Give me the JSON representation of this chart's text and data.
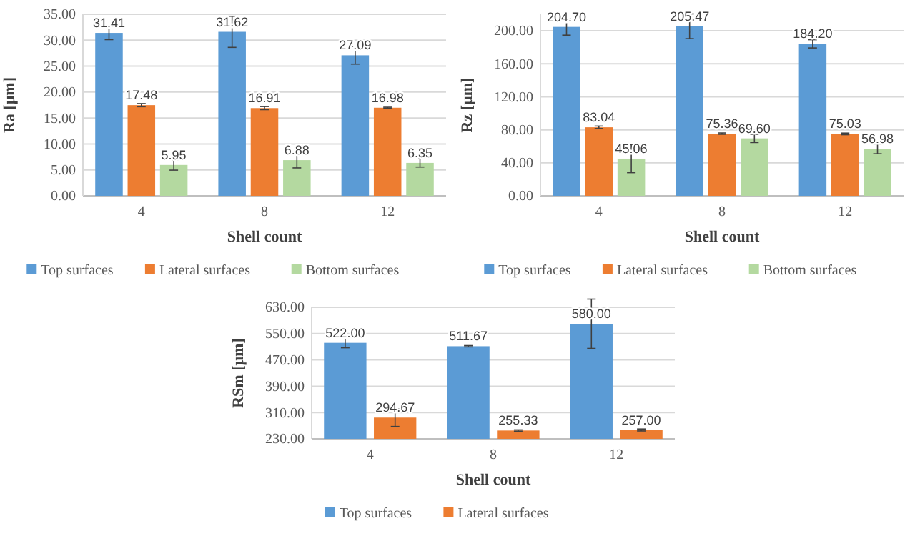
{
  "chart_data": [
    {
      "type": "bar",
      "xlabel": "Shell count",
      "ylabel": "Ra [µm]",
      "categories": [
        "4",
        "8",
        "12"
      ],
      "ylim": [
        0,
        35
      ],
      "yticks": [
        {
          "value": 0,
          "label": "0.00"
        },
        {
          "value": 5,
          "label": "5.00"
        },
        {
          "value": 10,
          "label": "10.00"
        },
        {
          "value": 15,
          "label": "15.00"
        },
        {
          "value": 20,
          "label": "20.00"
        },
        {
          "value": 25,
          "label": "25.00"
        },
        {
          "value": 30,
          "label": "30.00"
        },
        {
          "value": 35,
          "label": "35.00"
        }
      ],
      "grid": "y",
      "legend": "bottom",
      "series": [
        {
          "name": "Top surfaces",
          "color": "#5b9bd5",
          "values": [
            31.41,
            31.62,
            27.09
          ],
          "value_labels": [
            "31.41",
            "31.62",
            "27.09"
          ],
          "errors": [
            1.3,
            3.0,
            1.7
          ]
        },
        {
          "name": "Lateral surfaces",
          "color": "#ed7d31",
          "values": [
            17.48,
            16.91,
            16.98
          ],
          "value_labels": [
            "17.48",
            "16.91",
            "16.98"
          ],
          "errors": [
            0.3,
            0.3,
            0.1
          ]
        },
        {
          "name": "Bottom surfaces",
          "color": "#b4d9a0",
          "values": [
            5.95,
            6.88,
            6.35
          ],
          "value_labels": [
            "5.95",
            "6.88",
            "6.35"
          ],
          "errors": [
            1.0,
            1.5,
            0.8
          ]
        }
      ]
    },
    {
      "type": "bar",
      "xlabel": "Shell count",
      "ylabel": "Rz [µm]",
      "categories": [
        "4",
        "8",
        "12"
      ],
      "ylim": [
        0,
        220
      ],
      "yticks": [
        {
          "value": 0,
          "label": "0.00"
        },
        {
          "value": 40,
          "label": "40.00"
        },
        {
          "value": 80,
          "label": "80.00"
        },
        {
          "value": 120,
          "label": "120.00"
        },
        {
          "value": 160,
          "label": "160.00"
        },
        {
          "value": 200,
          "label": "200.00"
        }
      ],
      "grid": "y",
      "legend": "bottom",
      "series": [
        {
          "name": "Top surfaces",
          "color": "#5b9bd5",
          "values": [
            204.7,
            205.47,
            184.2
          ],
          "value_labels": [
            "204.70",
            "205.47",
            "184.20"
          ],
          "errors": [
            10,
            15,
            5
          ]
        },
        {
          "name": "Lateral surfaces",
          "color": "#ed7d31",
          "values": [
            83.04,
            75.36,
            75.03
          ],
          "value_labels": [
            "83.04",
            "75.36",
            "75.03"
          ],
          "errors": [
            1.5,
            0.8,
            1
          ]
        },
        {
          "name": "Bottom surfaces",
          "color": "#b4d9a0",
          "values": [
            45.06,
            69.6,
            56.98
          ],
          "value_labels": [
            "45.06",
            "69.60",
            "56.98"
          ],
          "errors": [
            17,
            5,
            6
          ]
        }
      ]
    },
    {
      "type": "bar",
      "xlabel": "Shell count",
      "ylabel": "RSm [µm]",
      "categories": [
        "4",
        "8",
        "12"
      ],
      "ylim": [
        230,
        630
      ],
      "yticks": [
        {
          "value": 230,
          "label": "230.00"
        },
        {
          "value": 310,
          "label": "310.00"
        },
        {
          "value": 390,
          "label": "390.00"
        },
        {
          "value": 470,
          "label": "470.00"
        },
        {
          "value": 550,
          "label": "550.00"
        },
        {
          "value": 630,
          "label": "630.00"
        }
      ],
      "grid": "y",
      "legend": "bottom",
      "series": [
        {
          "name": "Top surfaces",
          "color": "#5b9bd5",
          "values": [
            522,
            511.67,
            580
          ],
          "value_labels": [
            "522.00",
            "511.67",
            "580.00"
          ],
          "errors": [
            15,
            2,
            75
          ]
        },
        {
          "name": "Lateral surfaces",
          "color": "#ed7d31",
          "values": [
            294.67,
            255.33,
            257
          ],
          "value_labels": [
            "294.67",
            "255.33",
            "257.00"
          ],
          "errors": [
            27,
            2,
            3
          ]
        }
      ]
    }
  ]
}
